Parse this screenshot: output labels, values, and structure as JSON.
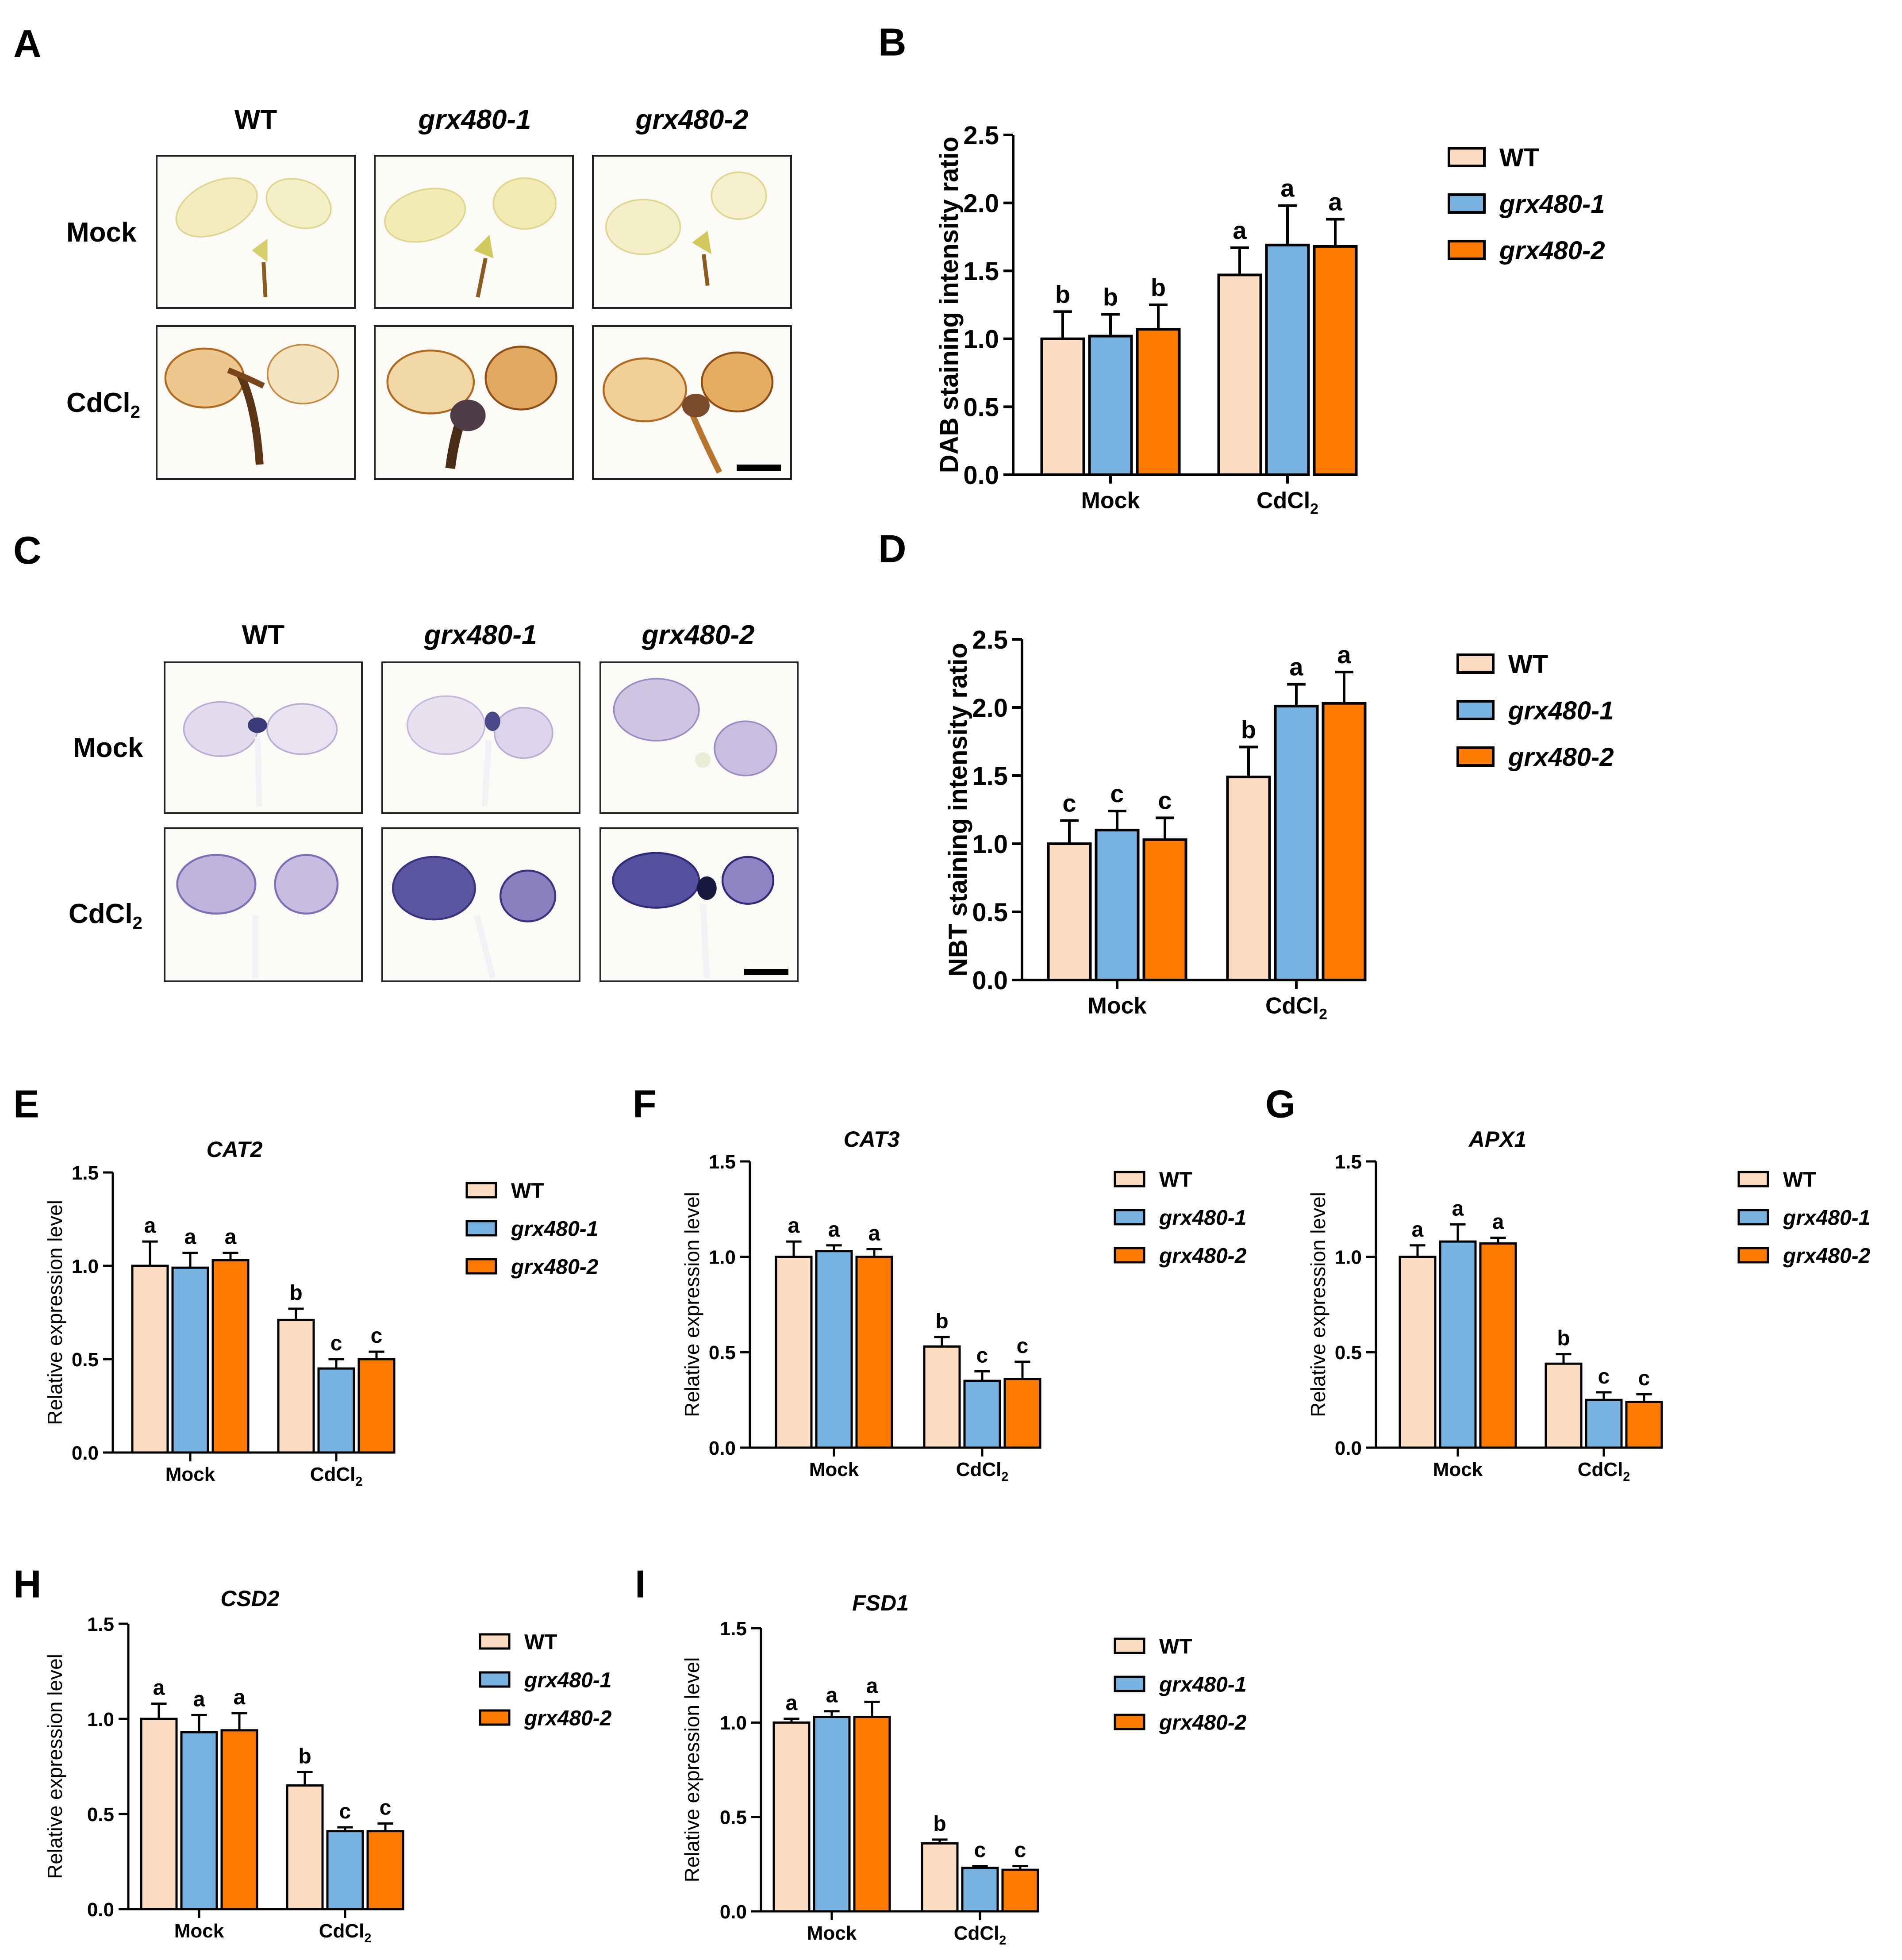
{
  "colors": {
    "wt": "#fbdcc0",
    "grx1": "#77b2e0",
    "grx2": "#ff7a00",
    "axis": "#000000"
  },
  "panels": {
    "A": {
      "label": "A",
      "columns": [
        "WT",
        "grx480-1",
        "grx480-2"
      ],
      "rows": {
        "mock": "Mock",
        "cd_main": "CdCl",
        "cd_sub": "2"
      }
    },
    "C": {
      "label": "C",
      "columns": [
        "WT",
        "grx480-1",
        "grx480-2"
      ],
      "rows": {
        "mock": "Mock",
        "cd_main": "CdCl",
        "cd_sub": "2"
      }
    }
  },
  "chart_data": [
    {
      "id": "B",
      "panel_label": "B",
      "type": "bar",
      "title": "",
      "ylabel": "DAB staining intensity ratio",
      "ylim": [
        0,
        2.5
      ],
      "yticks": [
        "0.0",
        "0.5",
        "1.0",
        "1.5",
        "2.0",
        "2.5"
      ],
      "categories": [
        {
          "main": "Mock",
          "sub": ""
        },
        {
          "main": "CdCl",
          "sub": "2"
        }
      ],
      "series": [
        {
          "name": "WT",
          "values": [
            1.0,
            1.47
          ],
          "errors": [
            0.2,
            0.2
          ],
          "letters": [
            "b",
            "a"
          ]
        },
        {
          "name": "grx480-1",
          "values": [
            1.02,
            1.69
          ],
          "errors": [
            0.16,
            0.29
          ],
          "letters": [
            "b",
            "a"
          ]
        },
        {
          "name": "grx480-2",
          "values": [
            1.07,
            1.68
          ],
          "errors": [
            0.18,
            0.2
          ],
          "letters": [
            "b",
            "a"
          ]
        }
      ]
    },
    {
      "id": "D",
      "panel_label": "D",
      "type": "bar",
      "title": "",
      "ylabel": "NBT staining intensity ratio",
      "ylim": [
        0,
        2.5
      ],
      "yticks": [
        "0.0",
        "0.5",
        "1.0",
        "1.5",
        "2.0",
        "2.5"
      ],
      "categories": [
        {
          "main": "Mock",
          "sub": ""
        },
        {
          "main": "CdCl",
          "sub": "2"
        }
      ],
      "series": [
        {
          "name": "WT",
          "values": [
            1.0,
            1.49
          ],
          "errors": [
            0.17,
            0.22
          ],
          "letters": [
            "c",
            "b"
          ]
        },
        {
          "name": "grx480-1",
          "values": [
            1.1,
            2.01
          ],
          "errors": [
            0.14,
            0.16
          ],
          "letters": [
            "c",
            "a"
          ]
        },
        {
          "name": "grx480-2",
          "values": [
            1.03,
            2.03
          ],
          "errors": [
            0.16,
            0.23
          ],
          "letters": [
            "c",
            "a"
          ]
        }
      ]
    },
    {
      "id": "E",
      "panel_label": "E",
      "type": "bar",
      "title": "CAT2",
      "ylabel": "Relative expression level",
      "ylim": [
        0,
        1.5
      ],
      "yticks": [
        "0.0",
        "0.5",
        "1.0",
        "1.5"
      ],
      "categories": [
        {
          "main": "Mock",
          "sub": ""
        },
        {
          "main": "CdCl",
          "sub": "2"
        }
      ],
      "series": [
        {
          "name": "WT",
          "values": [
            1.0,
            0.71
          ],
          "errors": [
            0.13,
            0.06
          ],
          "letters": [
            "a",
            "b"
          ]
        },
        {
          "name": "grx480-1",
          "values": [
            0.99,
            0.45
          ],
          "errors": [
            0.08,
            0.05
          ],
          "letters": [
            "a",
            "c"
          ]
        },
        {
          "name": "grx480-2",
          "values": [
            1.03,
            0.5
          ],
          "errors": [
            0.04,
            0.04
          ],
          "letters": [
            "a",
            "c"
          ]
        }
      ]
    },
    {
      "id": "F",
      "panel_label": "F",
      "type": "bar",
      "title": "CAT3",
      "ylabel": "Relative expression level",
      "ylim": [
        0,
        1.5
      ],
      "yticks": [
        "0.0",
        "0.5",
        "1.0",
        "1.5"
      ],
      "categories": [
        {
          "main": "Mock",
          "sub": ""
        },
        {
          "main": "CdCl",
          "sub": "2"
        }
      ],
      "series": [
        {
          "name": "WT",
          "values": [
            1.0,
            0.53
          ],
          "errors": [
            0.08,
            0.05
          ],
          "letters": [
            "a",
            "b"
          ]
        },
        {
          "name": "grx480-1",
          "values": [
            1.03,
            0.35
          ],
          "errors": [
            0.03,
            0.05
          ],
          "letters": [
            "a",
            "c"
          ]
        },
        {
          "name": "grx480-2",
          "values": [
            1.0,
            0.36
          ],
          "errors": [
            0.04,
            0.09
          ],
          "letters": [
            "a",
            "c"
          ]
        }
      ]
    },
    {
      "id": "G",
      "panel_label": "G",
      "type": "bar",
      "title": "APX1",
      "ylabel": "Relative expression level",
      "ylim": [
        0,
        1.5
      ],
      "yticks": [
        "0.0",
        "0.5",
        "1.0",
        "1.5"
      ],
      "categories": [
        {
          "main": "Mock",
          "sub": ""
        },
        {
          "main": "CdCl",
          "sub": "2"
        }
      ],
      "series": [
        {
          "name": "WT",
          "values": [
            1.0,
            0.44
          ],
          "errors": [
            0.06,
            0.05
          ],
          "letters": [
            "a",
            "b"
          ]
        },
        {
          "name": "grx480-1",
          "values": [
            1.08,
            0.25
          ],
          "errors": [
            0.09,
            0.04
          ],
          "letters": [
            "a",
            "c"
          ]
        },
        {
          "name": "grx480-2",
          "values": [
            1.07,
            0.24
          ],
          "errors": [
            0.03,
            0.04
          ],
          "letters": [
            "a",
            "c"
          ]
        }
      ]
    },
    {
      "id": "H",
      "panel_label": "H",
      "type": "bar",
      "title": "CSD2",
      "ylabel": "Relative expression level",
      "ylim": [
        0,
        1.5
      ],
      "yticks": [
        "0.0",
        "0.5",
        "1.0",
        "1.5"
      ],
      "categories": [
        {
          "main": "Mock",
          "sub": ""
        },
        {
          "main": "CdCl",
          "sub": "2"
        }
      ],
      "series": [
        {
          "name": "WT",
          "values": [
            1.0,
            0.65
          ],
          "errors": [
            0.08,
            0.07
          ],
          "letters": [
            "a",
            "b"
          ]
        },
        {
          "name": "grx480-1",
          "values": [
            0.93,
            0.41
          ],
          "errors": [
            0.09,
            0.02
          ],
          "letters": [
            "a",
            "c"
          ]
        },
        {
          "name": "grx480-2",
          "values": [
            0.94,
            0.41
          ],
          "errors": [
            0.09,
            0.04
          ],
          "letters": [
            "a",
            "c"
          ]
        }
      ]
    },
    {
      "id": "I",
      "panel_label": "I",
      "type": "bar",
      "title": "FSD1",
      "ylabel": "Relative expression level",
      "ylim": [
        0,
        1.5
      ],
      "yticks": [
        "0.0",
        "0.5",
        "1.0",
        "1.5"
      ],
      "categories": [
        {
          "main": "Mock",
          "sub": ""
        },
        {
          "main": "CdCl",
          "sub": "2"
        }
      ],
      "series": [
        {
          "name": "WT",
          "values": [
            1.0,
            0.36
          ],
          "errors": [
            0.02,
            0.02
          ],
          "letters": [
            "a",
            "b"
          ]
        },
        {
          "name": "grx480-1",
          "values": [
            1.03,
            0.23
          ],
          "errors": [
            0.03,
            0.01
          ],
          "letters": [
            "a",
            "c"
          ]
        },
        {
          "name": "grx480-2",
          "values": [
            1.03,
            0.22
          ],
          "errors": [
            0.08,
            0.02
          ],
          "letters": [
            "a",
            "c"
          ]
        }
      ]
    }
  ]
}
